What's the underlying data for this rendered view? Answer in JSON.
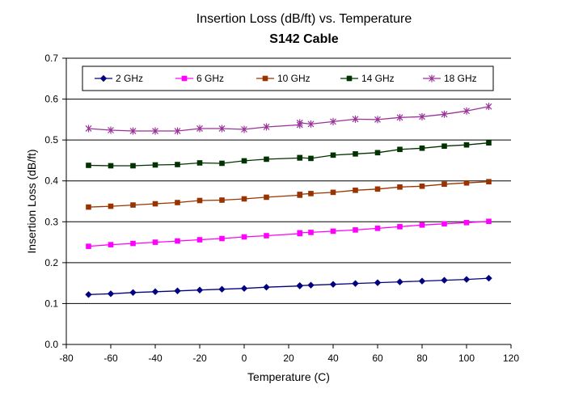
{
  "chart_data": {
    "type": "line",
    "title": "Insertion Loss (dB/ft) vs. Temperature",
    "subtitle": "S142 Cable",
    "xlabel": "Temperature (C)",
    "ylabel": "Insertion Loss (dB/ft)",
    "xlim": [
      -80,
      120
    ],
    "ylim": [
      0.0,
      0.7
    ],
    "x_ticks": [
      "-80",
      "-60",
      "-40",
      "-20",
      "0",
      "20",
      "40",
      "60",
      "80",
      "100",
      "120"
    ],
    "y_ticks": [
      "0.0",
      "0.1",
      "0.2",
      "0.3",
      "0.4",
      "0.5",
      "0.6",
      "0.7"
    ],
    "grid": "horizontal",
    "legend_position": "top",
    "x": [
      -70,
      -60,
      -50,
      -40,
      -30,
      -20,
      -10,
      0,
      10,
      25,
      25,
      30,
      40,
      50,
      60,
      70,
      80,
      90,
      100,
      110
    ],
    "series": [
      {
        "name": "2 GHz",
        "color": "#000080",
        "marker": "diamond",
        "values": [
          0.122,
          0.124,
          0.127,
          0.129,
          0.131,
          0.133,
          0.135,
          0.137,
          0.14,
          0.143,
          0.144,
          0.145,
          0.147,
          0.149,
          0.151,
          0.153,
          0.155,
          0.157,
          0.159,
          0.162
        ]
      },
      {
        "name": "6 GHz",
        "color": "#ff00ff",
        "marker": "square",
        "values": [
          0.24,
          0.244,
          0.247,
          0.25,
          0.253,
          0.256,
          0.259,
          0.263,
          0.266,
          0.271,
          0.273,
          0.274,
          0.277,
          0.28,
          0.284,
          0.288,
          0.292,
          0.295,
          0.298,
          0.301
        ]
      },
      {
        "name": "10 GHz",
        "color": "#993300",
        "marker": "square",
        "values": [
          0.336,
          0.338,
          0.341,
          0.344,
          0.347,
          0.352,
          0.353,
          0.356,
          0.36,
          0.365,
          0.367,
          0.369,
          0.372,
          0.377,
          0.38,
          0.385,
          0.387,
          0.392,
          0.395,
          0.398
        ]
      },
      {
        "name": "14 GHz",
        "color": "#003300",
        "marker": "square",
        "values": [
          0.438,
          0.437,
          0.437,
          0.439,
          0.44,
          0.444,
          0.443,
          0.449,
          0.453,
          0.456,
          0.457,
          0.455,
          0.463,
          0.466,
          0.469,
          0.477,
          0.48,
          0.485,
          0.488,
          0.493
        ]
      },
      {
        "name": "18 GHz",
        "color": "#993399",
        "marker": "star",
        "values": [
          0.528,
          0.524,
          0.522,
          0.522,
          0.522,
          0.528,
          0.528,
          0.526,
          0.532,
          0.537,
          0.542,
          0.539,
          0.545,
          0.551,
          0.55,
          0.555,
          0.557,
          0.563,
          0.571,
          0.582
        ]
      }
    ]
  }
}
